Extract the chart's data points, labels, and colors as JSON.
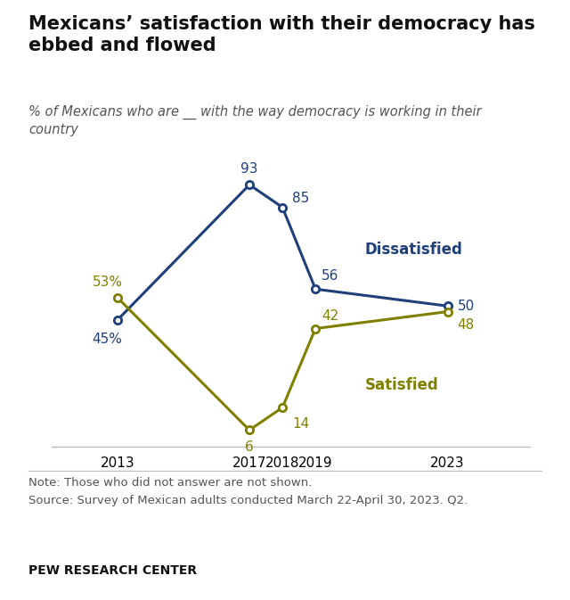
{
  "title": "Mexicans’ satisfaction with their democracy has\nebbed and flowed",
  "subtitle": "% of Mexicans who are __ with the way democracy is working in their\ncountry",
  "years": [
    2013,
    2017,
    2018,
    2019,
    2023
  ],
  "dissatisfied": [
    45,
    93,
    85,
    56,
    50
  ],
  "satisfied": [
    53,
    6,
    14,
    42,
    48
  ],
  "dissatisfied_color": "#1f3f7a",
  "satisfied_color": "#808000",
  "dissatisfied_label": "Dissatisfied",
  "satisfied_label": "Satisfied",
  "note_line1": "Note: Those who did not answer are not shown.",
  "note_line2": "Source: Survey of Mexican adults conducted March 22-April 30, 2023. Q2.",
  "footer": "PEW RESEARCH CENTER",
  "ylim": [
    0,
    100
  ],
  "xlim_left": 2011.0,
  "xlim_right": 2025.5,
  "background_color": "#ffffff",
  "title_fontsize": 15,
  "subtitle_fontsize": 10.5,
  "annot_fontsize": 11,
  "tick_fontsize": 11,
  "series_label_fontsize": 12,
  "note_fontsize": 9.5,
  "footer_fontsize": 10
}
